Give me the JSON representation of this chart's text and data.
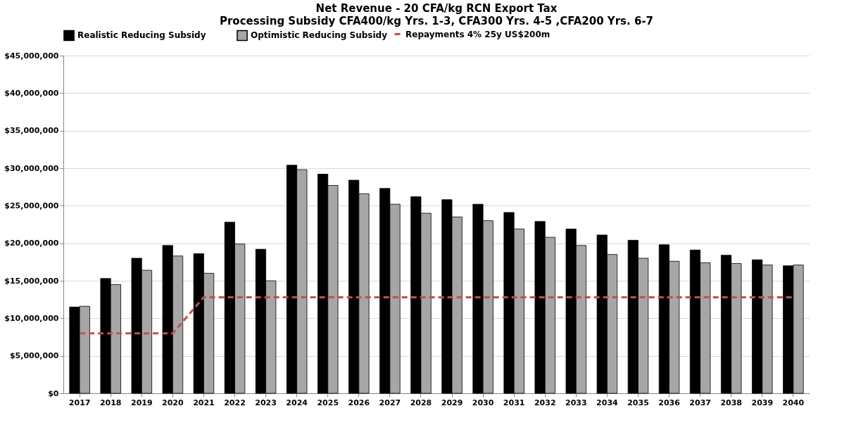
{
  "chart_data": {
    "type": "bar",
    "title": "Net Revenue - 20 CFA/kg RCN Export Tax",
    "subtitle": "Processing Subsidy CFA400/kg Yrs. 1-3, CFA300 Yrs. 4-5 ,CFA200 Yrs. 6-7",
    "categories": [
      "2017",
      "2018",
      "2019",
      "2020",
      "2021",
      "2022",
      "2023",
      "2024",
      "2025",
      "2026",
      "2027",
      "2028",
      "2029",
      "2030",
      "2031",
      "2032",
      "2033",
      "2034",
      "2035",
      "2036",
      "2037",
      "2038",
      "2039",
      "2040"
    ],
    "series": [
      {
        "name": "Realistic Reducing Subsidy",
        "color": "#000000",
        "values": [
          11500000,
          15300000,
          18000000,
          19700000,
          18600000,
          22800000,
          19200000,
          30400000,
          29200000,
          28400000,
          27300000,
          26200000,
          25800000,
          25200000,
          24100000,
          22900000,
          21900000,
          21100000,
          20400000,
          19800000,
          19100000,
          18400000,
          17800000,
          17000000
        ]
      },
      {
        "name": "Optimistic Reducing Subsidy",
        "color": "#a6a6a6",
        "values": [
          11600000,
          14500000,
          16400000,
          18300000,
          16000000,
          19900000,
          15000000,
          29800000,
          27700000,
          26600000,
          25200000,
          24000000,
          23500000,
          23000000,
          21900000,
          20800000,
          19700000,
          18500000,
          18000000,
          17600000,
          17400000,
          17300000,
          17100000,
          17100000
        ]
      },
      {
        "name": "Repayments 4% 25y US$200m",
        "color": "#c0504d",
        "type": "line",
        "line_style": "dashed",
        "marker": "none",
        "values": [
          8000000,
          8000000,
          8000000,
          8000000,
          12800000,
          12800000,
          12800000,
          12800000,
          12800000,
          12800000,
          12800000,
          12800000,
          12800000,
          12800000,
          12800000,
          12800000,
          12800000,
          12800000,
          12800000,
          12800000,
          12800000,
          12800000,
          12800000,
          12800000
        ]
      }
    ],
    "ylim": [
      0,
      45000000
    ],
    "yticks": [
      {
        "value": 0,
        "label": "$0"
      },
      {
        "value": 5000000,
        "label": "$5,000,000"
      },
      {
        "value": 10000000,
        "label": "$10,000,000"
      },
      {
        "value": 15000000,
        "label": "$15,000,000"
      },
      {
        "value": 20000000,
        "label": "$20,000,000"
      },
      {
        "value": 25000000,
        "label": "$25,000,000"
      },
      {
        "value": 30000000,
        "label": "$30,000,000"
      },
      {
        "value": 35000000,
        "label": "$35,000,000"
      },
      {
        "value": 40000000,
        "label": "$40,000,000"
      },
      {
        "value": 45000000,
        "label": "$45,000,000"
      }
    ],
    "grid": "y",
    "legend": "top"
  }
}
